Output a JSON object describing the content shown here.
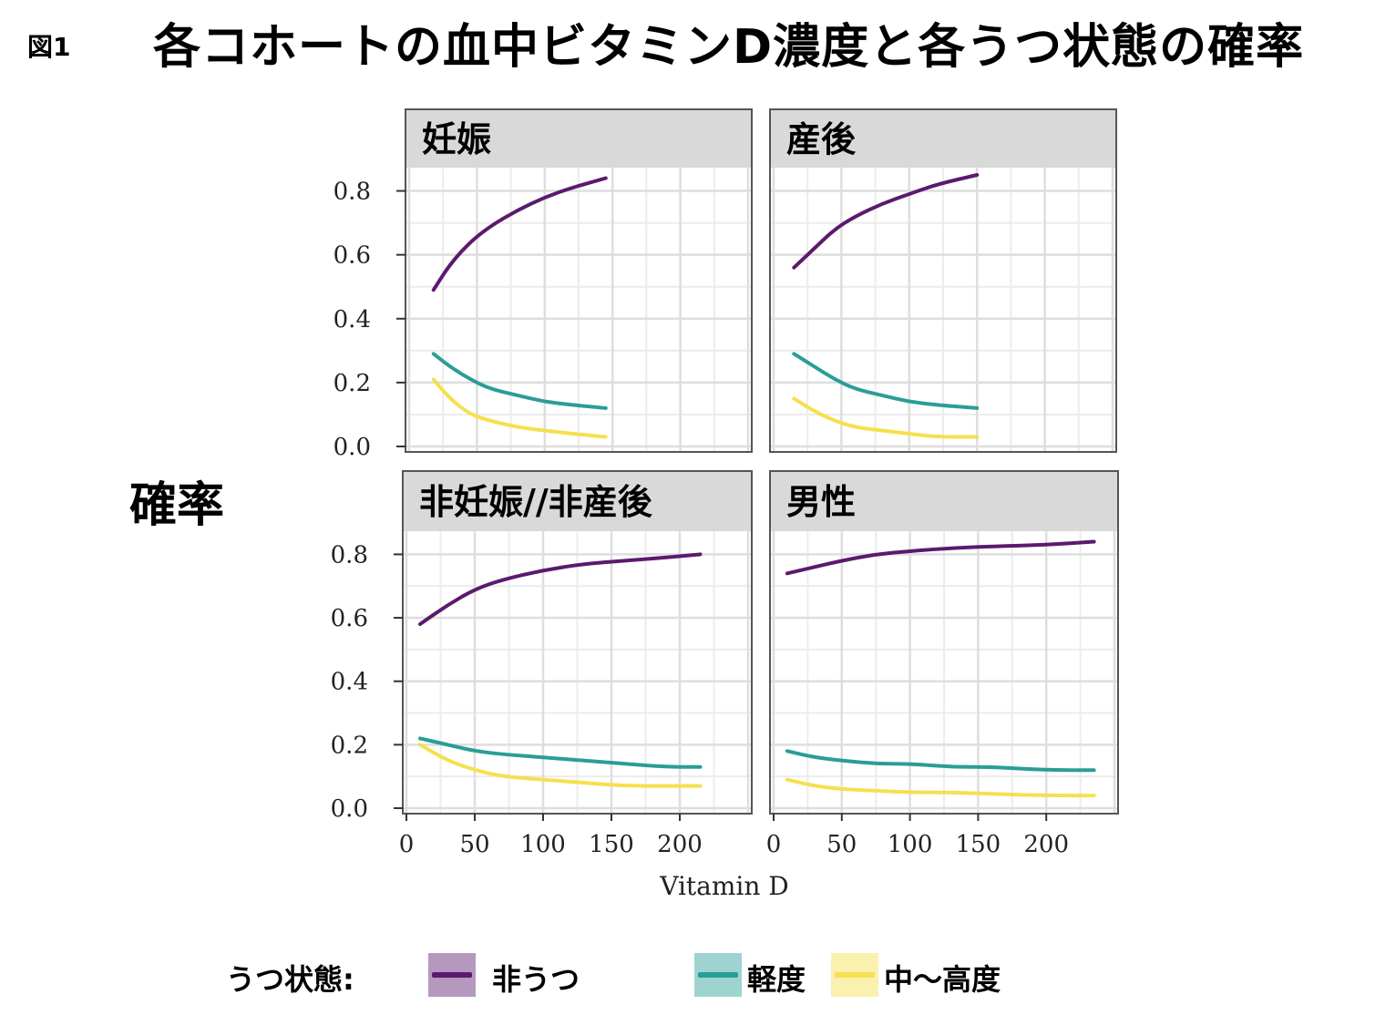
{
  "figure_label": "図1",
  "title": "各コホートの血中ビタミンD濃度と各うつ状態の確率",
  "y_axis_label": "確率",
  "legend": {
    "title": "うつ状態:",
    "items": [
      {
        "label": "非うつ",
        "color": "#5b1a6e"
      },
      {
        "label": "軽度",
        "color": "#2a9d96"
      },
      {
        "label": "中～高度",
        "color": "#f5e04e"
      }
    ]
  },
  "chart_data": {
    "type": "line",
    "xlabel": "Vitamin D",
    "ylabel": "確率",
    "ylim": [
      0.0,
      0.85
    ],
    "yticks": [
      "0.0",
      "0.2",
      "0.4",
      "0.6",
      "0.8"
    ],
    "xticks": [
      "0",
      "50",
      "100",
      "150",
      "200"
    ],
    "grid": true,
    "facets": [
      {
        "panel": "妊娠",
        "xlim": [
          0,
          250
        ],
        "series": [
          {
            "name": "非うつ",
            "color": "#5b1a6e",
            "x": [
              18,
              30,
              45,
              60,
              80,
              100,
              120,
              145
            ],
            "y": [
              0.49,
              0.57,
              0.64,
              0.69,
              0.74,
              0.78,
              0.81,
              0.84
            ]
          },
          {
            "name": "軽度",
            "color": "#2a9d96",
            "x": [
              18,
              30,
              45,
              60,
              80,
              100,
              120,
              145
            ],
            "y": [
              0.29,
              0.25,
              0.21,
              0.18,
              0.16,
              0.14,
              0.13,
              0.12
            ]
          },
          {
            "name": "中～高度",
            "color": "#f5e04e",
            "x": [
              18,
              30,
              45,
              60,
              80,
              100,
              120,
              145
            ],
            "y": [
              0.21,
              0.15,
              0.1,
              0.08,
              0.06,
              0.05,
              0.04,
              0.03
            ]
          }
        ]
      },
      {
        "panel": "産後",
        "xlim": [
          0,
          250
        ],
        "series": [
          {
            "name": "非うつ",
            "color": "#5b1a6e",
            "x": [
              15,
              30,
              45,
              60,
              80,
              100,
              120,
              150
            ],
            "y": [
              0.56,
              0.62,
              0.68,
              0.72,
              0.76,
              0.79,
              0.82,
              0.85
            ]
          },
          {
            "name": "軽度",
            "color": "#2a9d96",
            "x": [
              15,
              30,
              45,
              60,
              80,
              100,
              120,
              150
            ],
            "y": [
              0.29,
              0.25,
              0.21,
              0.18,
              0.16,
              0.14,
              0.13,
              0.12
            ]
          },
          {
            "name": "中～高度",
            "color": "#f5e04e",
            "x": [
              15,
              30,
              45,
              60,
              80,
              100,
              120,
              150
            ],
            "y": [
              0.15,
              0.11,
              0.08,
              0.06,
              0.05,
              0.04,
              0.03,
              0.03
            ]
          }
        ]
      },
      {
        "panel": "非妊娠//非産後",
        "xlim": [
          0,
          250
        ],
        "series": [
          {
            "name": "非うつ",
            "color": "#5b1a6e",
            "x": [
              10,
              30,
              50,
              70,
              100,
              130,
              160,
              190,
              215
            ],
            "y": [
              0.58,
              0.64,
              0.69,
              0.72,
              0.75,
              0.77,
              0.78,
              0.79,
              0.8
            ]
          },
          {
            "name": "軽度",
            "color": "#2a9d96",
            "x": [
              10,
              30,
              50,
              70,
              100,
              130,
              160,
              190,
              215
            ],
            "y": [
              0.22,
              0.2,
              0.18,
              0.17,
              0.16,
              0.15,
              0.14,
              0.13,
              0.13
            ]
          },
          {
            "name": "中～高度",
            "color": "#f5e04e",
            "x": [
              10,
              30,
              50,
              70,
              100,
              130,
              160,
              190,
              215
            ],
            "y": [
              0.2,
              0.15,
              0.12,
              0.1,
              0.09,
              0.08,
              0.07,
              0.07,
              0.07
            ]
          }
        ]
      },
      {
        "panel": "男性",
        "xlim": [
          0,
          250
        ],
        "series": [
          {
            "name": "非うつ",
            "color": "#5b1a6e",
            "x": [
              10,
              30,
              50,
              75,
              100,
              130,
              160,
              200,
              235
            ],
            "y": [
              0.74,
              0.76,
              0.78,
              0.8,
              0.81,
              0.82,
              0.825,
              0.83,
              0.84
            ]
          },
          {
            "name": "軽度",
            "color": "#2a9d96",
            "x": [
              10,
              30,
              50,
              75,
              100,
              130,
              160,
              200,
              235
            ],
            "y": [
              0.18,
              0.16,
              0.15,
              0.14,
              0.14,
              0.13,
              0.13,
              0.12,
              0.12
            ]
          },
          {
            "name": "中～高度",
            "color": "#f5e04e",
            "x": [
              10,
              30,
              50,
              75,
              100,
              130,
              160,
              200,
              235
            ],
            "y": [
              0.09,
              0.07,
              0.06,
              0.055,
              0.05,
              0.05,
              0.045,
              0.04,
              0.04
            ]
          }
        ]
      }
    ]
  }
}
